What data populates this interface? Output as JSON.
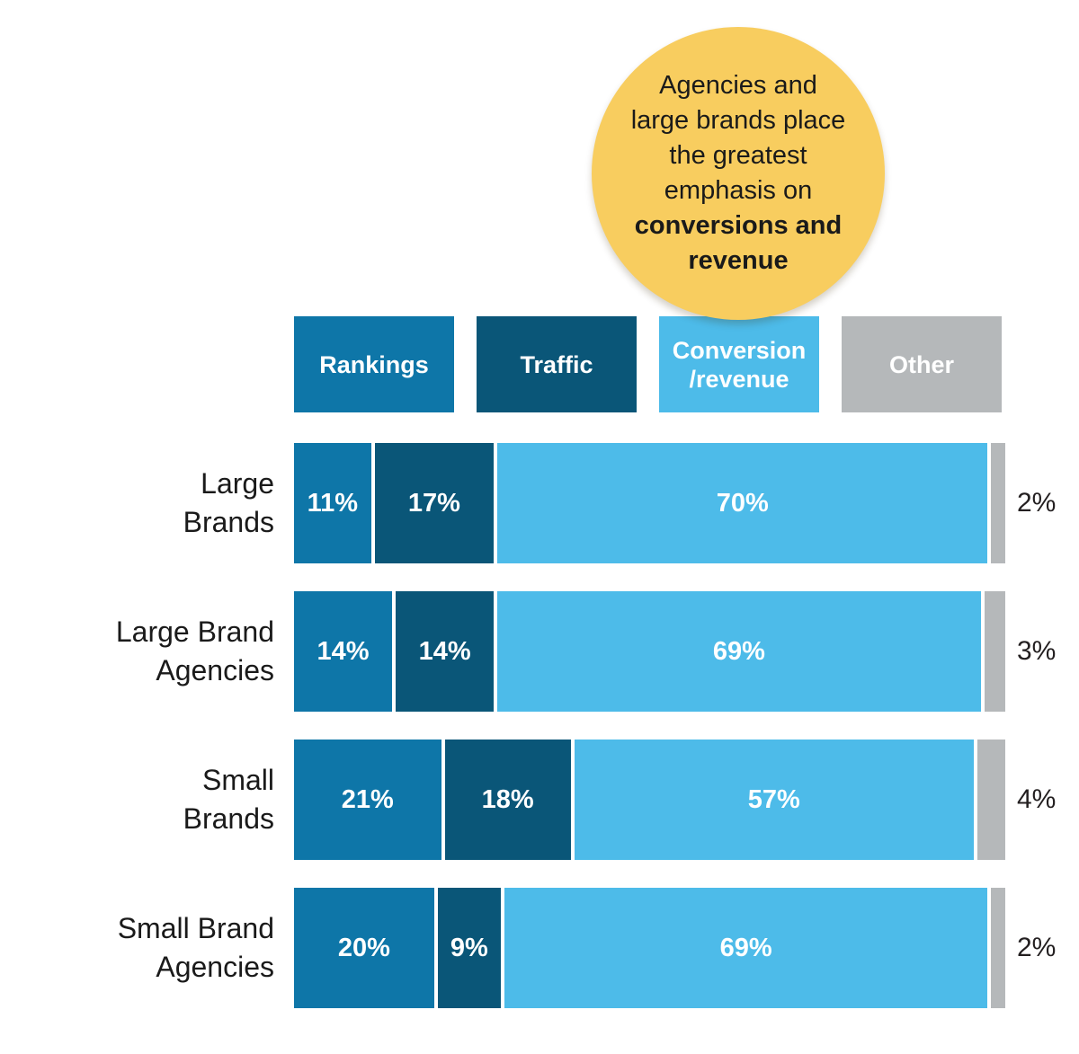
{
  "callout": {
    "bg_color": "#F8CD5F",
    "text_color": "#1A1A1A",
    "lines": [
      {
        "text": "Agencies and",
        "bold": false
      },
      {
        "text": "large brands place",
        "bold": false
      },
      {
        "text": "the greatest",
        "bold": false
      },
      {
        "text": "emphasis on",
        "bold": false
      },
      {
        "text": "conversions and",
        "bold": true
      },
      {
        "text": "revenue",
        "bold": true
      }
    ]
  },
  "chart_data": {
    "type": "bar",
    "orientation": "horizontal",
    "stacked": true,
    "unit": "percent",
    "xlim": [
      0,
      100
    ],
    "grid": false,
    "legend_position": "top",
    "legend": [
      {
        "label": "Rankings",
        "display": "Rankings",
        "color": "#0E76A8"
      },
      {
        "label": "Traffic",
        "display": "Traffic",
        "color": "#0A5678"
      },
      {
        "label": "Conversion/revenue",
        "display": "Conversion\n/revenue",
        "color": "#4DBBE9"
      },
      {
        "label": "Other",
        "display": "Other",
        "color": "#B5B8BA"
      }
    ],
    "categories": [
      "Large Brands",
      "Large Brand Agencies",
      "Small Brands",
      "Small Brand Agencies"
    ],
    "category_lines": [
      [
        "Large",
        "Brands"
      ],
      [
        "Large Brand",
        "Agencies"
      ],
      [
        "Small",
        "Brands"
      ],
      [
        "Small Brand",
        "Agencies"
      ]
    ],
    "series": [
      {
        "name": "Rankings",
        "values": [
          11,
          14,
          21,
          20
        ]
      },
      {
        "name": "Traffic",
        "values": [
          17,
          14,
          18,
          9
        ]
      },
      {
        "name": "Conversion/revenue",
        "values": [
          70,
          69,
          57,
          69
        ]
      },
      {
        "name": "Other",
        "values": [
          2,
          3,
          4,
          2
        ]
      }
    ],
    "value_labels": {
      "inside_series": [
        "Rankings",
        "Traffic",
        "Conversion/revenue"
      ],
      "outside_series": [
        "Other"
      ],
      "format": "{value}%"
    }
  }
}
